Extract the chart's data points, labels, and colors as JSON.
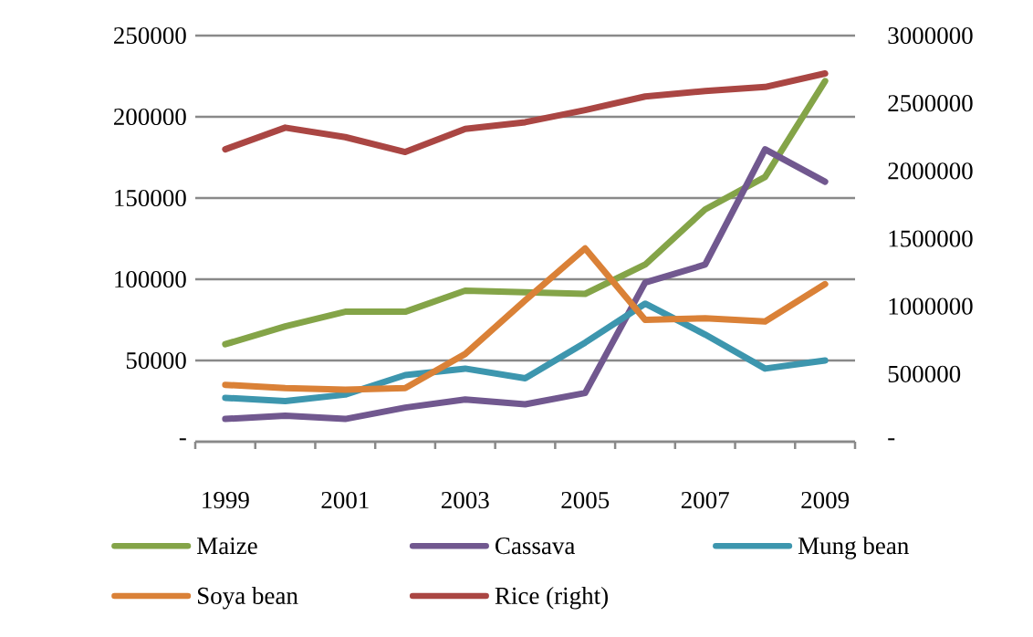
{
  "chart_data": {
    "type": "line",
    "categories": [
      "1999",
      null,
      "2001",
      null,
      "2003",
      null,
      "2005",
      null,
      "2007",
      null,
      "2009"
    ],
    "series": [
      {
        "name": "Maize",
        "color": "#84a448",
        "values": [
          60000,
          71000,
          80000,
          80000,
          93000,
          92000,
          91000,
          109000,
          143000,
          163000,
          222000
        ]
      },
      {
        "name": "Cassava",
        "color": "#71588f",
        "values": [
          14000,
          16000,
          14000,
          21000,
          26000,
          23000,
          30000,
          98000,
          109000,
          180000,
          160000
        ]
      },
      {
        "name": "Mung bean",
        "color": "#3d96ae",
        "values": [
          27000,
          25000,
          29000,
          41000,
          45000,
          39000,
          61000,
          85000,
          66000,
          45000,
          50000
        ]
      },
      {
        "name": "Soya bean",
        "color": "#da8137",
        "values": [
          35000,
          33000,
          32000,
          33000,
          54000,
          87000,
          119000,
          75000,
          76000,
          74000,
          97000
        ]
      },
      {
        "name": "Rice (right)",
        "color": "#aa4643",
        "axis": "y2",
        "values": [
          2160000,
          2320000,
          2250000,
          2140000,
          2310000,
          2360000,
          2450000,
          2550000,
          2590000,
          2620000,
          2720000
        ]
      }
    ],
    "ylim": [
      0,
      250000
    ],
    "yticks": [
      {
        "value": 0,
        "label": "-"
      },
      50000,
      100000,
      150000,
      200000,
      250000
    ],
    "y2lim": [
      0,
      3000000
    ],
    "y2ticks": [
      {
        "value": 0,
        "label": "-"
      },
      500000,
      1000000,
      1500000,
      2000000,
      2500000,
      3000000
    ],
    "grid": "y",
    "legend": "bottom",
    "marker": "none",
    "line_style": "solid"
  }
}
